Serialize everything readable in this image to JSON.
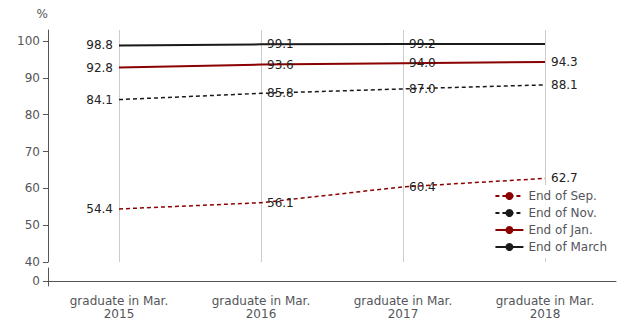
{
  "chart_data": [
    {
      "type": "line",
      "ylabel": "%",
      "categories": [
        "graduate in Mar.\n2015",
        "graduate in Mar.\n2016",
        "graduate in Mar.\n2017",
        "graduate in Mar.\n2018"
      ],
      "ylim": [
        40,
        103
      ],
      "yticks": [
        40,
        50,
        60,
        70,
        80,
        90,
        100
      ],
      "grid": true,
      "legend": "lower right",
      "data_labels": true,
      "tick_labels": "y",
      "series": [
        {
          "name": "End of Sep.",
          "color": "#8B0000",
          "line_style": "dashed",
          "values": [
            54.4,
            56.1,
            60.4,
            62.7
          ],
          "value_labels": [
            "54.4",
            "56.1",
            "60.4",
            "62.7"
          ]
        },
        {
          "name": "End of Nov.",
          "color": "#1a1a1a",
          "line_style": "dashed",
          "values": [
            84.1,
            85.8,
            87.0,
            88.1
          ],
          "value_labels": [
            "84.1",
            "85.8",
            "87.0",
            "88.1"
          ]
        },
        {
          "name": "End of Jan.",
          "color": "#8B0000",
          "line_style": "solid",
          "values": [
            92.8,
            93.6,
            94.0,
            94.3
          ],
          "value_labels": [
            "92.8",
            "93.6",
            "94.0",
            "94.3"
          ]
        },
        {
          "name": "End of March",
          "color": "#1a1a1a",
          "line_style": "solid",
          "values": [
            98.8,
            99.1,
            99.2,
            99.2
          ],
          "value_labels": [
            "98.8",
            "99.1",
            "99.2",
            null
          ]
        }
      ]
    },
    {
      "type": "line",
      "categories": [
        "graduate in Mar.\n2015",
        "graduate in Mar.\n2016",
        "graduate in Mar.\n2017",
        "graduate in Mar.\n2018"
      ],
      "ylim": [
        -2,
        5
      ],
      "yticks": [
        0
      ]
    }
  ]
}
